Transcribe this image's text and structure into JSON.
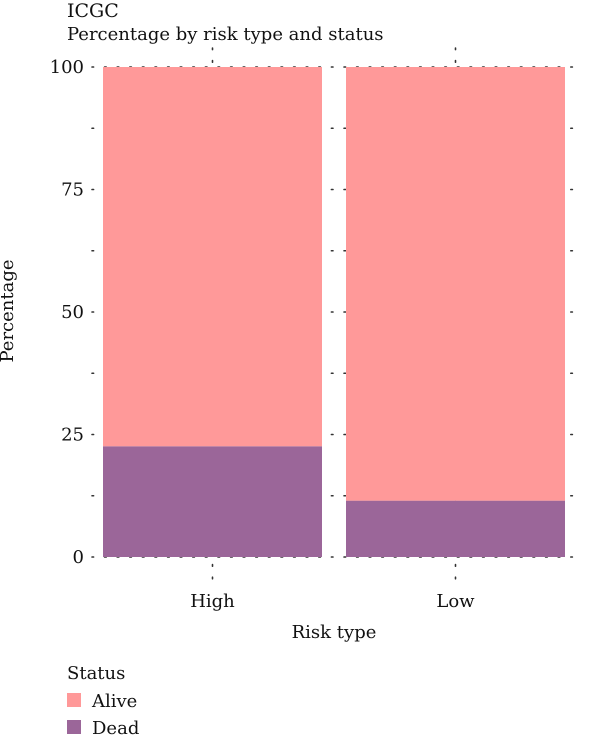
{
  "chart_data": {
    "type": "bar",
    "stacked": true,
    "title": "ICGC",
    "subtitle": "Percentage by risk type and status",
    "xlabel": "Risk type",
    "ylabel": "Percentage",
    "categories": [
      "High",
      "Low"
    ],
    "series": [
      {
        "name": "Dead",
        "values": [
          22.6,
          11.5
        ],
        "color": "#9B6699"
      },
      {
        "name": "Alive",
        "values": [
          77.4,
          88.5
        ],
        "color": "#FF9999"
      }
    ],
    "ylim": [
      0,
      100
    ],
    "yticks": [
      "0",
      "25",
      "50",
      "75",
      "100"
    ],
    "grid": "dotted",
    "legend": {
      "title": "Status",
      "position": "bottom-left",
      "entries": [
        "Alive",
        "Dead"
      ]
    }
  }
}
